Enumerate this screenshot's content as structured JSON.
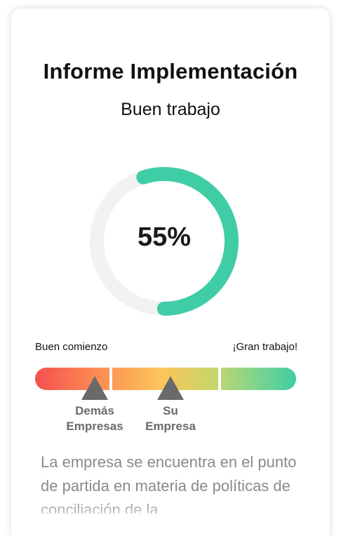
{
  "report": {
    "title": "Informe Implementación",
    "subtitle": "Buen trabajo"
  },
  "gauge": {
    "value_label": "55%",
    "value": 55,
    "track_color": "#f2f2f2",
    "progress_color": "#40cda6"
  },
  "scale": {
    "left_label": "Buen comienzo",
    "right_label": "¡Gran trabajo!",
    "markers": [
      {
        "line1": "Demás",
        "line2": "Empresas"
      },
      {
        "line1": "Su",
        "line2": "Empresa"
      }
    ],
    "marker_color": "#6a6a6a"
  },
  "description": {
    "text": "La empresa se encuentra en el punto de partida en materia de políticas de conciliación de la"
  }
}
